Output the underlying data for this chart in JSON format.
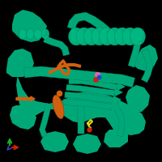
{
  "background_color": "#000000",
  "figure_size": [
    2.0,
    2.0
  ],
  "dpi": 100,
  "protein_color": "#00a878",
  "protein_dark": "#008060",
  "orange_color": "#d06010",
  "yellow_color": "#d8d820",
  "red_dot_color": "#cc2200",
  "pink_dot_color": "#dd66aa",
  "blue_dot_color": "#2244cc",
  "axis_x_color": "#cc2200",
  "axis_y_color": "#22aa22",
  "axis_z_color": "#3344bb",
  "protein_outline": "#004440",
  "helix_color": "#00b882"
}
